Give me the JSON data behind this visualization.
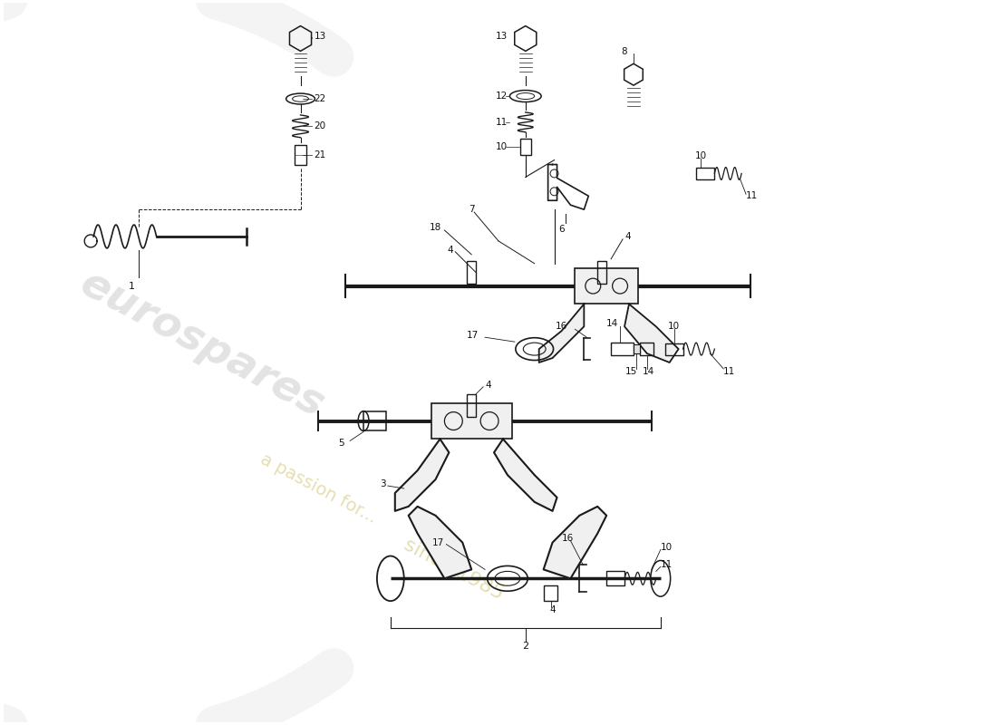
{
  "bg_color": "#ffffff",
  "lc": "#1a1a1a",
  "figsize": [
    11.0,
    8.0
  ],
  "dpi": 100,
  "xlim": [
    0,
    110
  ],
  "ylim": [
    0,
    80
  ]
}
